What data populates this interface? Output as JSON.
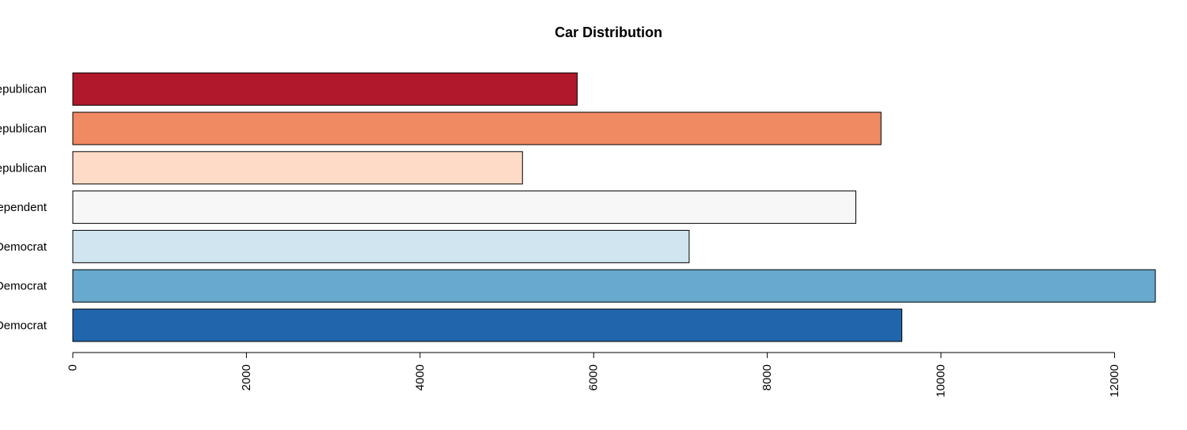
{
  "chart_data": {
    "type": "bar",
    "orientation": "horizontal",
    "title": "Car Distribution",
    "xlabel": "",
    "ylabel": "",
    "categories": [
      "Democrat",
      "Democrat",
      "Democrat",
      "Independent",
      "Republican",
      "Republican",
      "Republican"
    ],
    "values": [
      9550,
      12470,
      7100,
      9020,
      5180,
      9310,
      5810
    ],
    "colors": [
      "#2166AC",
      "#67A9CF",
      "#D1E5F0",
      "#F7F7F7",
      "#FDDBC7",
      "#EF8A62",
      "#B2182B"
    ],
    "xlim": [
      0,
      12470
    ],
    "x_ticks": [
      0,
      2000,
      4000,
      6000,
      8000,
      10000,
      12000
    ],
    "x_tick_labels": [
      "0",
      "2000",
      "4000",
      "6000",
      "8000",
      "10000",
      "12000"
    ],
    "grid": false,
    "legend": "none"
  }
}
